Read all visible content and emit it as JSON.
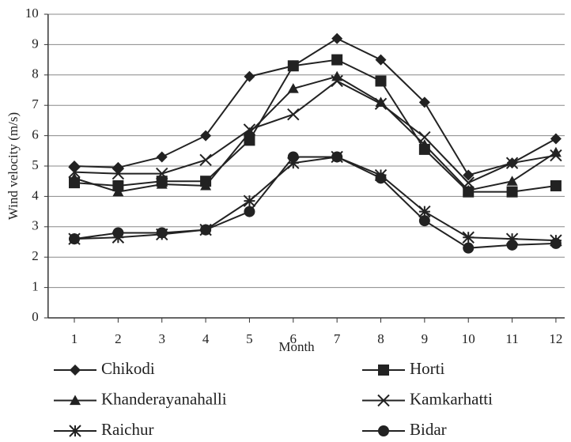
{
  "chart_data": {
    "type": "line",
    "x_label": "Month",
    "y_label": "Wind velocity (m/s)",
    "x": [
      1,
      2,
      3,
      4,
      5,
      6,
      7,
      8,
      9,
      10,
      11,
      12
    ],
    "xlim": [
      0.4,
      12.2
    ],
    "xticks": [
      1,
      2,
      3,
      4,
      5,
      6,
      7,
      8,
      9,
      10,
      11,
      12
    ],
    "ylim": [
      0,
      10
    ],
    "yticks": [
      0,
      1,
      2,
      3,
      4,
      5,
      6,
      7,
      8,
      9,
      10
    ],
    "grid": true,
    "legend": "bottom",
    "series": [
      {
        "name": "Chikodi",
        "color": "#222",
        "marker": "diamond",
        "values": [
          5.0,
          4.95,
          5.3,
          6.0,
          7.95,
          8.3,
          9.2,
          8.5,
          7.1,
          4.7,
          5.1,
          5.9
        ]
      },
      {
        "name": "Horti",
        "color": "#222",
        "marker": "square",
        "values": [
          4.45,
          4.35,
          4.5,
          4.5,
          5.85,
          8.3,
          8.5,
          7.8,
          5.55,
          4.15,
          4.15,
          4.35
        ]
      },
      {
        "name": "Khanderayanahalli",
        "color": "#222",
        "marker": "triangle",
        "values": [
          4.6,
          4.15,
          4.4,
          4.35,
          6.1,
          7.55,
          7.95,
          7.1,
          5.7,
          4.2,
          4.5,
          5.45
        ]
      },
      {
        "name": "Kamkarhatti",
        "color": "#222",
        "marker": "x",
        "values": [
          4.8,
          4.75,
          4.75,
          5.2,
          6.2,
          6.7,
          7.8,
          7.05,
          5.95,
          4.45,
          5.1,
          5.35
        ]
      },
      {
        "name": "Raichur",
        "color": "#222",
        "marker": "star",
        "values": [
          2.6,
          2.65,
          2.75,
          2.9,
          3.85,
          5.1,
          5.3,
          4.7,
          3.5,
          2.65,
          2.6,
          2.55
        ]
      },
      {
        "name": "Bidar",
        "color": "#222",
        "marker": "circle",
        "values": [
          2.6,
          2.8,
          2.8,
          2.9,
          3.5,
          5.3,
          5.3,
          4.6,
          3.2,
          2.3,
          2.4,
          2.45
        ]
      }
    ]
  }
}
